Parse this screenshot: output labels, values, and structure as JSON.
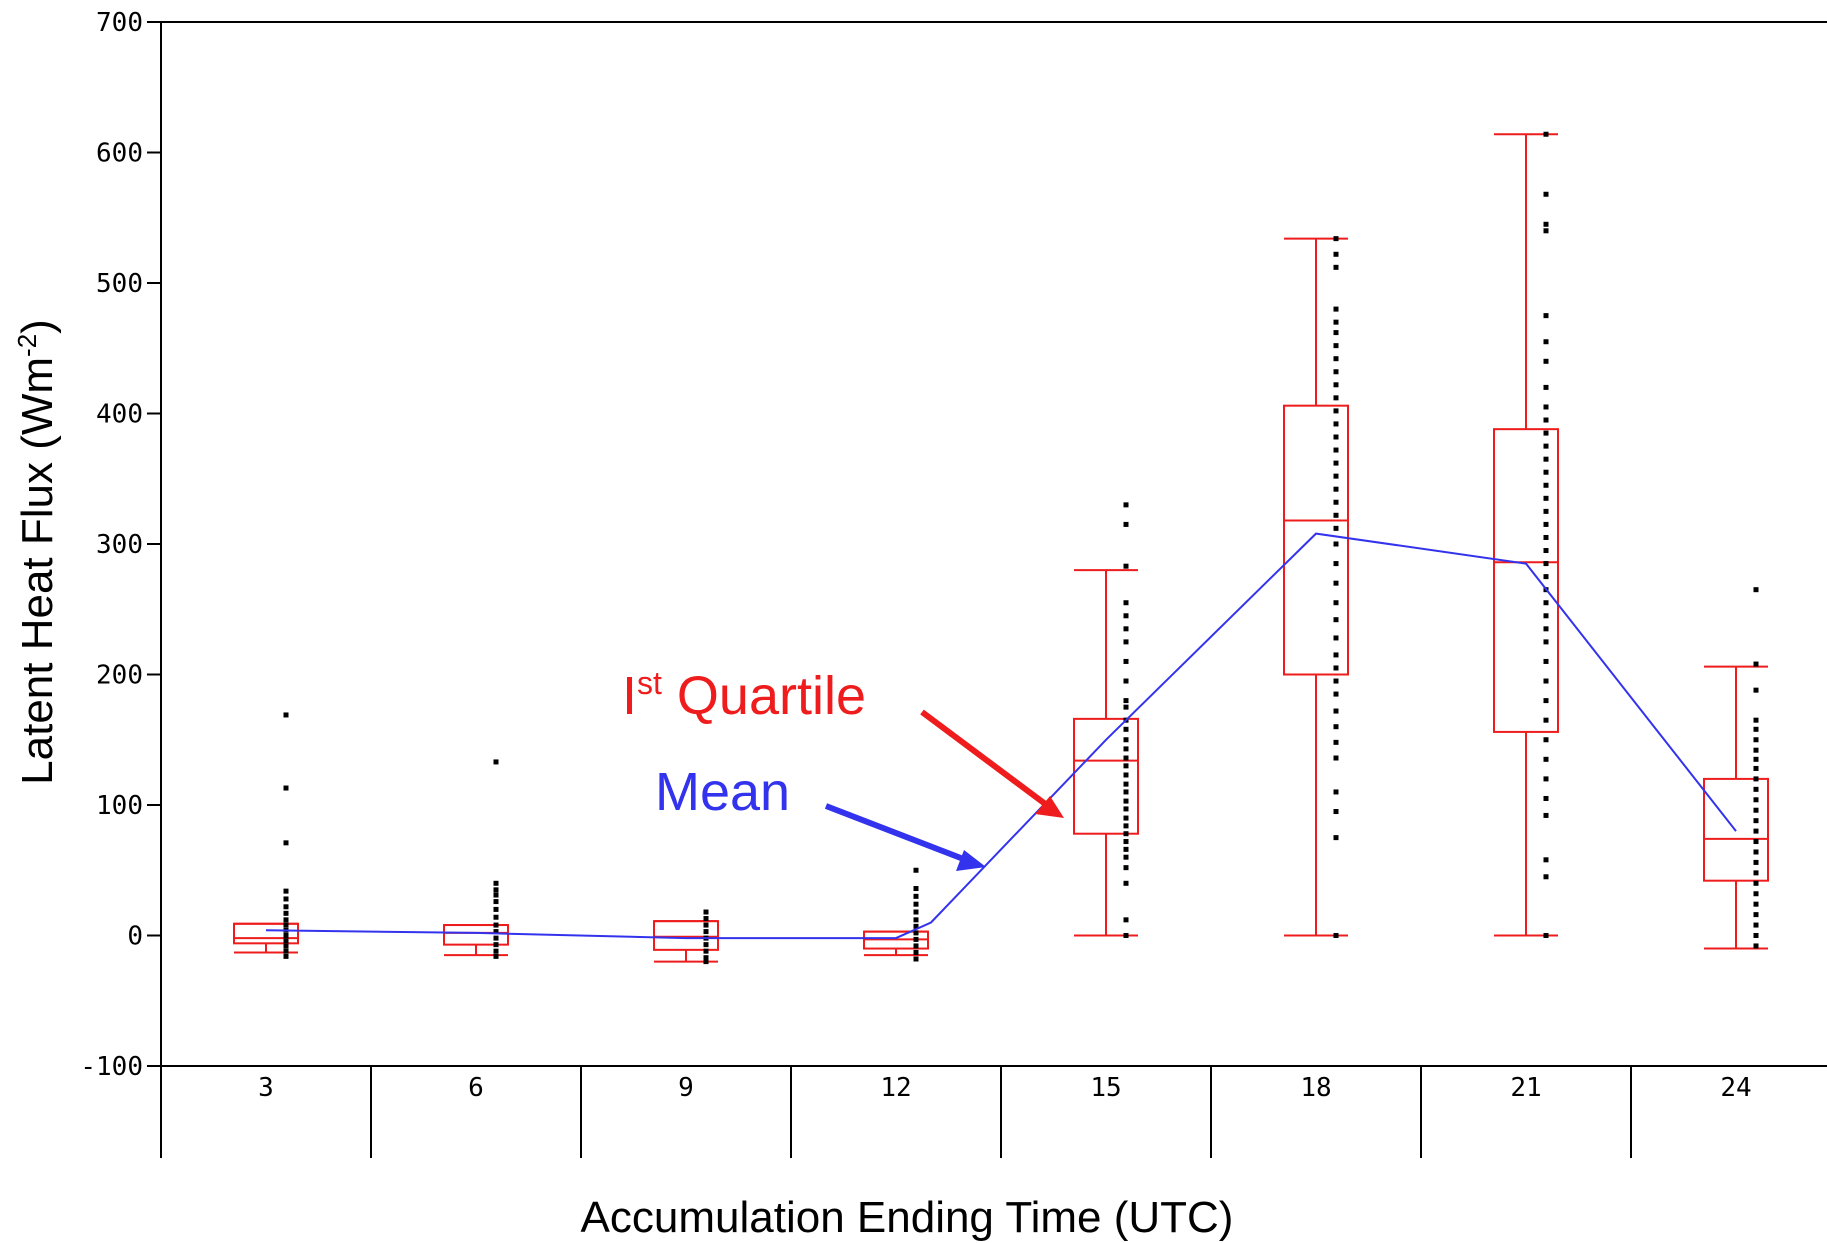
{
  "chart_data": {
    "type": "box",
    "title": "",
    "xlabel": "Accumulation Ending Time (UTC)",
    "ylabel_main": "Latent Heat Flux (Wm",
    "ylabel_sup": "-2",
    "ylabel_close": ")",
    "ylim": [
      -100,
      700
    ],
    "yticks": [
      -100,
      0,
      100,
      200,
      300,
      400,
      500,
      600,
      700
    ],
    "ytick_labels": [
      "-100",
      "0",
      "100",
      "200",
      "300",
      "400",
      "500",
      "600",
      "700"
    ],
    "categories": [
      "3",
      "6",
      "9",
      "12",
      "15",
      "18",
      "21",
      "24"
    ],
    "boxes": [
      {
        "category": "3",
        "min": -13,
        "q1": -6,
        "median": -2,
        "q3": 9,
        "max": 9
      },
      {
        "category": "6",
        "min": -15,
        "q1": -7,
        "median": 2,
        "q3": 8,
        "max": 8
      },
      {
        "category": "9",
        "min": -20,
        "q1": -11,
        "median": -1,
        "q3": 11,
        "max": 11
      },
      {
        "category": "12",
        "min": -15,
        "q1": -10,
        "median": -3,
        "q3": 3,
        "max": 3
      },
      {
        "category": "15",
        "min": 0,
        "q1": 78,
        "median": 134,
        "q3": 166,
        "max": 280
      },
      {
        "category": "18",
        "min": 0,
        "q1": 200,
        "median": 318,
        "q3": 406,
        "max": 534
      },
      {
        "category": "21",
        "min": 0,
        "q1": 156,
        "median": 286,
        "q3": 388,
        "max": 614
      },
      {
        "category": "24",
        "min": -10,
        "q1": 42,
        "median": 74,
        "q3": 120,
        "max": 206
      }
    ],
    "mean": {
      "x": [
        "3",
        "6",
        "9",
        "12",
        "12.5",
        "15",
        "18",
        "21",
        "24"
      ],
      "values": [
        4,
        2,
        -2,
        -2,
        10,
        150,
        308,
        285,
        80
      ]
    },
    "points": [
      {
        "category": "3",
        "values": [
          169,
          113,
          71,
          34,
          28,
          22,
          17,
          12,
          8,
          4,
          0,
          -4,
          -8,
          -12,
          -16
        ]
      },
      {
        "category": "6",
        "values": [
          133,
          40,
          35,
          31,
          26,
          20,
          14,
          8,
          3,
          -2,
          -7,
          -12,
          -16
        ]
      },
      {
        "category": "9",
        "values": [
          18,
          13,
          8,
          3,
          -2,
          -7,
          -12,
          -17,
          -20
        ]
      },
      {
        "category": "12",
        "values": [
          50,
          36,
          30,
          24,
          18,
          12,
          7,
          2,
          -3,
          -8,
          -13,
          -18
        ]
      },
      {
        "category": "15",
        "values": [
          330,
          315,
          283,
          255,
          245,
          235,
          225,
          210,
          195,
          180,
          175,
          165,
          158,
          150,
          143,
          136,
          130,
          123,
          116,
          110,
          103,
          97,
          90,
          84,
          78,
          72,
          66,
          60,
          52,
          40,
          12,
          0
        ]
      },
      {
        "category": "18",
        "values": [
          534,
          522,
          512,
          480,
          470,
          462,
          452,
          442,
          432,
          422,
          412,
          402,
          392,
          382,
          372,
          362,
          352,
          342,
          332,
          322,
          312,
          300,
          285,
          270,
          255,
          242,
          228,
          215,
          205,
          195,
          185,
          172,
          160,
          148,
          136,
          110,
          95,
          75,
          0
        ]
      },
      {
        "category": "21",
        "values": [
          614,
          568,
          545,
          540,
          475,
          455,
          440,
          420,
          405,
          395,
          385,
          375,
          365,
          355,
          345,
          335,
          325,
          315,
          305,
          295,
          285,
          275,
          265,
          255,
          245,
          235,
          225,
          210,
          195,
          180,
          165,
          150,
          135,
          120,
          105,
          92,
          58,
          45,
          0
        ]
      },
      {
        "category": "24",
        "values": [
          265,
          208,
          188,
          165,
          158,
          150,
          142,
          135,
          128,
          120,
          112,
          104,
          96,
          88,
          80,
          72,
          64,
          56,
          48,
          40,
          32,
          24,
          16,
          8,
          0,
          -8
        ]
      }
    ],
    "annotations": [
      {
        "text_main": "I",
        "text_sup": "st",
        "text_rest": " Quartile",
        "color": "#ee1c1c",
        "target": "first quartile of 15 UTC box"
      },
      {
        "text": "Mean",
        "color": "#3333ee",
        "target": "mean line"
      }
    ],
    "colors": {
      "box": "#ee1c1c",
      "mean": "#3333ee",
      "points": "#000000",
      "axis": "#000000"
    },
    "grid": false,
    "legend": "none"
  }
}
